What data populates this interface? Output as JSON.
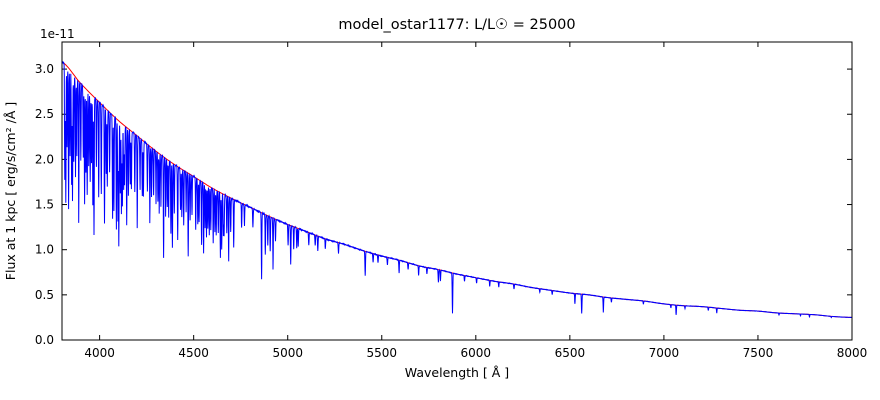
{
  "chart_data": {
    "type": "line",
    "title": "model_ostar1177: L/L☉ = 25000",
    "xlabel": "Wavelength [ Å ]",
    "ylabel": "Flux at 1 kpc [ erg/s/cm² /Å ]",
    "y_offset_label": "1e-11",
    "flux_units": "1e-11 erg/s/cm2/A at 1 kpc",
    "xlim": [
      3800,
      8000
    ],
    "ylim": [
      0,
      3.3
    ],
    "xticks": [
      4000,
      4500,
      5000,
      5500,
      6000,
      6500,
      7000,
      7500,
      8000
    ],
    "xtick_labels": [
      "4000",
      "4500",
      "5000",
      "5500",
      "6000",
      "6500",
      "7000",
      "7500",
      "8000"
    ],
    "yticks": [
      0.0,
      0.5,
      1.0,
      1.5,
      2.0,
      2.5,
      3.0
    ],
    "ytick_labels": [
      "0.0",
      "0.5",
      "1.0",
      "1.5",
      "2.0",
      "2.5",
      "3.0"
    ],
    "grid": false,
    "legend": null,
    "colors": {
      "continuum": "#ff0000",
      "spectrum": "#0000ff",
      "axes": "#000000",
      "background": "#ffffff"
    },
    "series": [
      {
        "name": "continuum_fit",
        "style": "smooth-line",
        "color_key": "continuum",
        "x": [
          3800,
          3900,
          4000,
          4100,
          4200,
          4300,
          4400,
          4500,
          4600,
          4700,
          4800,
          4900,
          5000,
          5100,
          5200,
          5300,
          5400,
          5500,
          5600,
          5700,
          5800,
          5900,
          6000,
          6100,
          6200,
          6300,
          6400,
          6500,
          6600,
          6700,
          6800,
          6900,
          7000,
          7100,
          7200,
          7300,
          7400,
          7500,
          7600,
          7700,
          7800,
          7900,
          8000
        ],
        "y": [
          3.08,
          2.84,
          2.63,
          2.43,
          2.26,
          2.09,
          1.94,
          1.81,
          1.68,
          1.57,
          1.47,
          1.37,
          1.28,
          1.2,
          1.12,
          1.06,
          0.99,
          0.93,
          0.88,
          0.82,
          0.78,
          0.73,
          0.69,
          0.65,
          0.62,
          0.58,
          0.55,
          0.52,
          0.5,
          0.47,
          0.45,
          0.43,
          0.4,
          0.38,
          0.37,
          0.35,
          0.33,
          0.32,
          0.3,
          0.29,
          0.28,
          0.26,
          0.25
        ]
      },
      {
        "name": "model_spectrum",
        "style": "absorption-spectrum",
        "color_key": "spectrum",
        "continuum_ref": "continuum_fit",
        "line_sigma_angstrom": 2.0,
        "absorption_lines": [
          [
            3815,
            0.42
          ],
          [
            3820,
            0.5
          ],
          [
            3827,
            0.3
          ],
          [
            3835,
            0.52
          ],
          [
            3843,
            0.32
          ],
          [
            3851,
            0.42
          ],
          [
            3856,
            0.48
          ],
          [
            3863,
            0.33
          ],
          [
            3872,
            0.38
          ],
          [
            3879,
            0.3
          ],
          [
            3889,
            0.55
          ],
          [
            3900,
            0.3
          ],
          [
            3913,
            0.28
          ],
          [
            3920,
            0.46
          ],
          [
            3927,
            0.33
          ],
          [
            3934,
            0.42
          ],
          [
            3942,
            0.3
          ],
          [
            3950,
            0.36
          ],
          [
            3957,
            0.28
          ],
          [
            3964,
            0.45
          ],
          [
            3970,
            0.57
          ],
          [
            3983,
            0.28
          ],
          [
            3995,
            0.4
          ],
          [
            4009,
            0.38
          ],
          [
            4026,
            0.5
          ],
          [
            4035,
            0.28
          ],
          [
            4041,
            0.33
          ],
          [
            4053,
            0.26
          ],
          [
            4069,
            0.46
          ],
          [
            4076,
            0.42
          ],
          [
            4089,
            0.5
          ],
          [
            4097,
            0.46
          ],
          [
            4102,
            0.57
          ],
          [
            4110,
            0.33
          ],
          [
            4116,
            0.42
          ],
          [
            4121,
            0.38
          ],
          [
            4128,
            0.3
          ],
          [
            4133,
            0.28
          ],
          [
            4144,
            0.46
          ],
          [
            4153,
            0.32
          ],
          [
            4163,
            0.26
          ],
          [
            4169,
            0.28
          ],
          [
            4187,
            0.28
          ],
          [
            4200,
            0.45
          ],
          [
            4215,
            0.26
          ],
          [
            4227,
            0.28
          ],
          [
            4233,
            0.28
          ],
          [
            4254,
            0.24
          ],
          [
            4267,
            0.4
          ],
          [
            4276,
            0.26
          ],
          [
            4287,
            0.24
          ],
          [
            4300,
            0.28
          ],
          [
            4310,
            0.26
          ],
          [
            4317,
            0.32
          ],
          [
            4326,
            0.28
          ],
          [
            4340,
            0.55
          ],
          [
            4351,
            0.32
          ],
          [
            4360,
            0.26
          ],
          [
            4367,
            0.32
          ],
          [
            4379,
            0.4
          ],
          [
            4387,
            0.48
          ],
          [
            4397,
            0.28
          ],
          [
            4415,
            0.42
          ],
          [
            4430,
            0.24
          ],
          [
            4437,
            0.28
          ],
          [
            4447,
            0.32
          ],
          [
            4460,
            0.24
          ],
          [
            4471,
            0.5
          ],
          [
            4481,
            0.28
          ],
          [
            4491,
            0.24
          ],
          [
            4511,
            0.32
          ],
          [
            4522,
            0.28
          ],
          [
            4529,
            0.26
          ],
          [
            4542,
            0.4
          ],
          [
            4553,
            0.45
          ],
          [
            4561,
            0.28
          ],
          [
            4568,
            0.34
          ],
          [
            4575,
            0.28
          ],
          [
            4583,
            0.32
          ],
          [
            4591,
            0.28
          ],
          [
            4604,
            0.36
          ],
          [
            4613,
            0.28
          ],
          [
            4620,
            0.3
          ],
          [
            4631,
            0.28
          ],
          [
            4642,
            0.44
          ],
          [
            4649,
            0.38
          ],
          [
            4658,
            0.28
          ],
          [
            4662,
            0.28
          ],
          [
            4676,
            0.26
          ],
          [
            4686,
            0.45
          ],
          [
            4697,
            0.24
          ],
          [
            4713,
            0.34
          ],
          [
            4755,
            0.18
          ],
          [
            4770,
            0.16
          ],
          [
            4815,
            0.14
          ],
          [
            4861,
            0.52
          ],
          [
            4881,
            0.32
          ],
          [
            4894,
            0.24
          ],
          [
            4907,
            0.28
          ],
          [
            4922,
            0.42
          ],
          [
            4935,
            0.18
          ],
          [
            5002,
            0.18
          ],
          [
            5016,
            0.34
          ],
          [
            5032,
            0.2
          ],
          [
            5048,
            0.18
          ],
          [
            5056,
            0.16
          ],
          [
            5112,
            0.12
          ],
          [
            5146,
            0.1
          ],
          [
            5160,
            0.14
          ],
          [
            5200,
            0.1
          ],
          [
            5270,
            0.11
          ],
          [
            5412,
            0.28
          ],
          [
            5454,
            0.1
          ],
          [
            5480,
            0.09
          ],
          [
            5530,
            0.09
          ],
          [
            5592,
            0.16
          ],
          [
            5640,
            0.09
          ],
          [
            5696,
            0.13
          ],
          [
            5740,
            0.09
          ],
          [
            5801,
            0.18
          ],
          [
            5812,
            0.16
          ],
          [
            5876,
            0.6
          ],
          [
            5940,
            0.09
          ],
          [
            6004,
            0.09
          ],
          [
            6074,
            0.1
          ],
          [
            6122,
            0.09
          ],
          [
            6203,
            0.09
          ],
          [
            6340,
            0.07
          ],
          [
            6406,
            0.08
          ],
          [
            6527,
            0.22
          ],
          [
            6563,
            0.42
          ],
          [
            6678,
            0.36
          ],
          [
            6721,
            0.1
          ],
          [
            6891,
            0.08
          ],
          [
            7037,
            0.09
          ],
          [
            7065,
            0.28
          ],
          [
            7112,
            0.08
          ],
          [
            7236,
            0.1
          ],
          [
            7281,
            0.16
          ],
          [
            7612,
            0.07
          ],
          [
            7726,
            0.07
          ],
          [
            7774,
            0.1
          ],
          [
            7890,
            0.05
          ]
        ]
      }
    ]
  }
}
